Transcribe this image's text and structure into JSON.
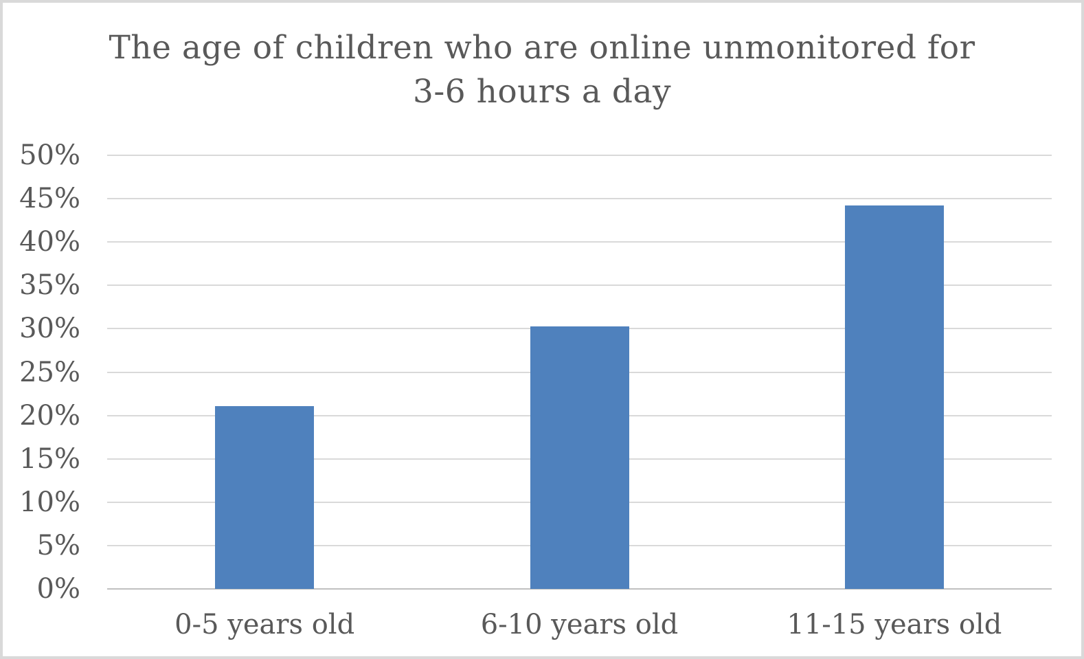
{
  "chart_data": {
    "type": "bar",
    "title": "The age of children who are online unmonitored for 3-6 hours a day",
    "title_line1": "The age of children who are online unmonitored for",
    "title_line2": "3-6 hours a day",
    "categories": [
      "0-5 years old",
      "6-10 years old",
      "11-15 years old"
    ],
    "values": [
      21.1,
      30.3,
      44.2
    ],
    "xlabel": "",
    "ylabel": "",
    "ylim": [
      0,
      50
    ],
    "ytick_step": 5,
    "ytick_labels": [
      "0%",
      "5%",
      "10%",
      "15%",
      "20%",
      "25%",
      "30%",
      "35%",
      "40%",
      "45%",
      "50%"
    ],
    "grid": true,
    "legend_position": "none"
  },
  "colors": {
    "bar": "#4f81bd",
    "gridline": "#d9d9d9",
    "axis_line": "#c0c0c0",
    "text": "#595959",
    "page_border": "#d9d9d9",
    "background": "#ffffff"
  }
}
